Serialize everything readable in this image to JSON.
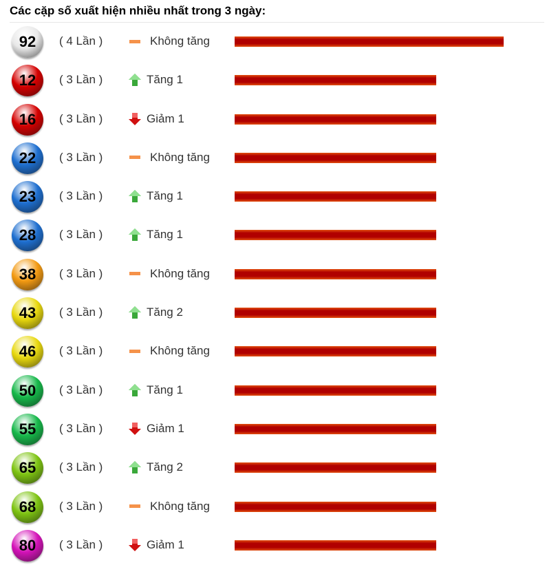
{
  "title": "Các cặp số xuất hiện nhiều nhất trong 3 ngày:",
  "max_count": 4,
  "items": [
    {
      "number": "92",
      "count": 4,
      "count_label": "( 4 Lần )",
      "trend": "same",
      "trend_label": "Không tăng",
      "ball_color": "#e8e8e8"
    },
    {
      "number": "12",
      "count": 3,
      "count_label": "( 3 Lần )",
      "trend": "up",
      "trend_label": "Tăng 1",
      "ball_color": "#d40000"
    },
    {
      "number": "16",
      "count": 3,
      "count_label": "( 3 Lần )",
      "trend": "down",
      "trend_label": "Giảm 1",
      "ball_color": "#d40000"
    },
    {
      "number": "22",
      "count": 3,
      "count_label": "( 3 Lần )",
      "trend": "same",
      "trend_label": "Không tăng",
      "ball_color": "#1e6fd0"
    },
    {
      "number": "23",
      "count": 3,
      "count_label": "( 3 Lần )",
      "trend": "up",
      "trend_label": "Tăng 1",
      "ball_color": "#1e6fd0"
    },
    {
      "number": "28",
      "count": 3,
      "count_label": "( 3 Lần )",
      "trend": "up",
      "trend_label": "Tăng 1",
      "ball_color": "#1e6fd0"
    },
    {
      "number": "38",
      "count": 3,
      "count_label": "( 3 Lần )",
      "trend": "same",
      "trend_label": "Không tăng",
      "ball_color": "#f39a12"
    },
    {
      "number": "43",
      "count": 3,
      "count_label": "( 3 Lần )",
      "trend": "up",
      "trend_label": "Tăng 2",
      "ball_color": "#e8d80e"
    },
    {
      "number": "46",
      "count": 3,
      "count_label": "( 3 Lần )",
      "trend": "same",
      "trend_label": "Không tăng",
      "ball_color": "#e8d80e"
    },
    {
      "number": "50",
      "count": 3,
      "count_label": "( 3 Lần )",
      "trend": "up",
      "trend_label": "Tăng 1",
      "ball_color": "#16b84a"
    },
    {
      "number": "55",
      "count": 3,
      "count_label": "( 3 Lần )",
      "trend": "down",
      "trend_label": "Giảm 1",
      "ball_color": "#16b84a"
    },
    {
      "number": "65",
      "count": 3,
      "count_label": "( 3 Lần )",
      "trend": "up",
      "trend_label": "Tăng 2",
      "ball_color": "#7ec412"
    },
    {
      "number": "68",
      "count": 3,
      "count_label": "( 3 Lần )",
      "trend": "same",
      "trend_label": "Không tăng",
      "ball_color": "#7ec412"
    },
    {
      "number": "80",
      "count": 3,
      "count_label": "( 3 Lần )",
      "trend": "down",
      "trend_label": "Giảm 1",
      "ball_color": "#d412b8"
    }
  ]
}
